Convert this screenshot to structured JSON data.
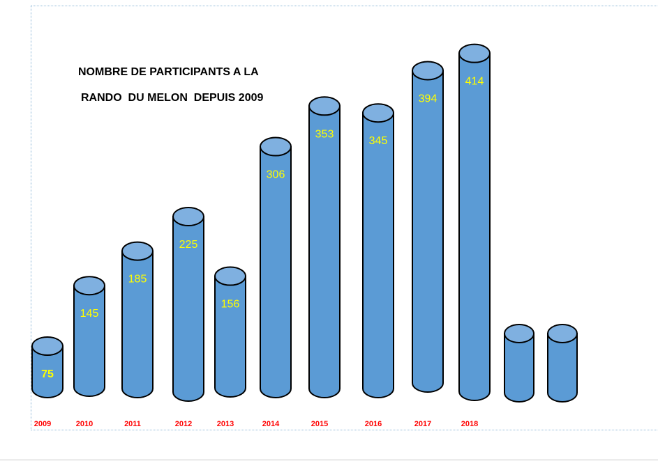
{
  "chart_data": {
    "type": "bar",
    "title_lines": [
      "NOMBRE DE PARTICIPANTS A LA",
      "RANDO  DU MELON  DEPUIS 2009"
    ],
    "categories": [
      "2009",
      "2010",
      "2011",
      "2012",
      "2013",
      "2014",
      "2015",
      "2016",
      "2017",
      "2018"
    ],
    "values": [
      75,
      145,
      185,
      225,
      156,
      306,
      353,
      345,
      394,
      414
    ],
    "empty_cylinders": 2,
    "colors": {
      "body": "#5b9bd5",
      "top": "#7fb0e0",
      "outline": "#000000",
      "value_label": "#ffff00",
      "first_value_label": "#ffff00",
      "category_label": "#ff0000"
    }
  }
}
